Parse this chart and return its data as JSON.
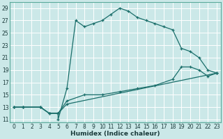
{
  "xlabel": "Humidex (Indice chaleur)",
  "bg_color": "#cbe8e8",
  "grid_color": "#b8d8d8",
  "line_color": "#1a6e6a",
  "xlim": [
    -0.5,
    23.5
  ],
  "ylim": [
    10.5,
    30
  ],
  "xticks": [
    0,
    1,
    2,
    3,
    4,
    5,
    6,
    7,
    8,
    9,
    10,
    11,
    12,
    13,
    14,
    15,
    16,
    17,
    18,
    19,
    20,
    21,
    22,
    23
  ],
  "yticks": [
    11,
    13,
    15,
    17,
    19,
    21,
    23,
    25,
    27,
    29
  ],
  "series1_x": [
    0,
    1,
    3,
    4,
    5,
    5,
    6,
    7,
    8,
    9,
    10,
    11,
    12,
    13,
    14,
    15,
    16,
    17,
    18,
    19,
    20,
    21,
    22,
    23
  ],
  "series1_y": [
    13,
    13,
    13,
    12,
    12,
    11,
    16,
    27,
    26,
    26.5,
    27,
    28,
    29,
    28.5,
    27.5,
    27,
    26.5,
    26,
    25.5,
    22.5,
    22,
    21,
    19,
    18.5
  ],
  "series2_x": [
    0,
    1,
    3,
    4,
    5,
    6,
    8,
    10,
    12,
    14,
    16,
    18,
    19,
    20,
    21,
    22,
    23
  ],
  "series2_y": [
    13,
    13,
    13,
    12,
    12,
    14,
    15,
    15,
    15.5,
    16,
    16.5,
    17.5,
    19.5,
    19.5,
    19,
    18,
    18.5
  ],
  "series3_x": [
    0,
    1,
    3,
    4,
    5,
    6,
    23
  ],
  "series3_y": [
    13,
    13,
    13,
    12,
    12,
    13.5,
    18.5
  ]
}
